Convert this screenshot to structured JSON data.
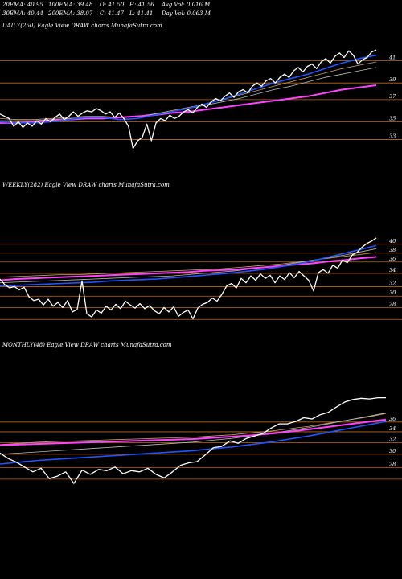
{
  "header": {
    "row1": [
      {
        "k": "20EMA",
        "v": "40.95"
      },
      {
        "k": "100EMA",
        "v": "39.48"
      },
      {
        "k": "O",
        "v": "41.50"
      },
      {
        "k": "H",
        "v": "41.56"
      },
      {
        "k": "Avg Vol",
        "v": "0.016  M"
      }
    ],
    "row2": [
      {
        "k": "30EMA",
        "v": "40.44"
      },
      {
        "k": "200EMA",
        "v": "38.07"
      },
      {
        "k": "C",
        "v": "41.47"
      },
      {
        "k": "L",
        "v": "41.41"
      },
      {
        "k": "Day Vol",
        "v": "0.063 M"
      }
    ]
  },
  "panels": {
    "daily": "DAILY(250) Eagle  View  DRAW charts MunafaSutra.com",
    "weekly": "WEEKLY(282) Eagle  View  DRAW charts MunafaSutra.com",
    "monthly": "MONTHLY(48) Eagle  View  DRAW charts MunafaSutra.com"
  },
  "colors": {
    "price": "#ffffff",
    "ema_blue": "#2255ff",
    "ema_magenta": "#ff44ff",
    "ema_tan": "#c8a070",
    "ema_gray": "#bbbbbb",
    "gridline": "#c06a1a"
  },
  "chart_data": [
    {
      "type": "line",
      "panel": "daily",
      "ylim": [
        32.5,
        42.5
      ],
      "yticks": [
        "41",
        "39",
        "37",
        "35",
        "33"
      ],
      "hlines": [
        40.5,
        38.5,
        37.0,
        35.0,
        33.4
      ],
      "series": [
        {
          "role": "price",
          "values": [
            35.7,
            35.5,
            35.3,
            34.6,
            35.0,
            34.5,
            34.9,
            34.6,
            35.1,
            34.8,
            35.3,
            35.0,
            35.4,
            35.7,
            35.2,
            35.5,
            35.9,
            35.5,
            35.8,
            36.0,
            35.9,
            36.2,
            36.0,
            35.7,
            35.9,
            35.4,
            35.8,
            35.3,
            34.6,
            32.6,
            33.3,
            33.6,
            34.8,
            33.3,
            34.9,
            35.3,
            35.1,
            35.6,
            35.3,
            35.5,
            35.9,
            36.1,
            35.8,
            36.3,
            36.6,
            36.3,
            36.8,
            37.1,
            36.9,
            37.3,
            37.6,
            37.2,
            37.7,
            37.9,
            37.6,
            38.2,
            38.5,
            38.2,
            38.7,
            38.9,
            38.5,
            39.0,
            39.3,
            39.0,
            39.6,
            39.9,
            39.5,
            40.0,
            40.2,
            39.8,
            40.4,
            40.7,
            40.3,
            40.9,
            41.2,
            40.8,
            41.4,
            41.0,
            40.2,
            40.6,
            40.8,
            41.3,
            41.47
          ]
        },
        {
          "role": "ema_blue",
          "values": [
            35.0,
            34.9,
            34.9,
            35.0,
            35.2,
            35.4,
            35.4,
            35.2,
            35.3,
            35.6,
            35.9,
            36.2,
            36.6,
            37.0,
            37.5,
            38.0,
            38.5,
            38.9,
            39.3,
            39.8,
            40.3,
            40.7,
            41.0
          ]
        },
        {
          "role": "ema_magenta",
          "values": [
            34.9,
            34.9,
            35.0,
            35.1,
            35.2,
            35.3,
            35.3,
            35.4,
            35.5,
            35.6,
            35.8,
            35.9,
            36.1,
            36.3,
            36.5,
            36.7,
            36.9,
            37.1,
            37.3,
            37.6,
            37.9,
            38.1,
            38.3
          ]
        },
        {
          "role": "ema_tan",
          "values": [
            35.3,
            35.2,
            35.2,
            35.3,
            35.4,
            35.5,
            35.5,
            35.4,
            35.5,
            35.7,
            36.0,
            36.3,
            36.6,
            37.0,
            37.4,
            37.8,
            38.2,
            38.6,
            39.0,
            39.4,
            39.8,
            40.1,
            40.4
          ]
        },
        {
          "role": "ema_gray",
          "values": [
            35.1,
            35.1,
            35.1,
            35.2,
            35.3,
            35.4,
            35.4,
            35.4,
            35.5,
            35.7,
            35.9,
            36.2,
            36.5,
            36.8,
            37.1,
            37.5,
            37.9,
            38.2,
            38.6,
            39.0,
            39.3,
            39.6,
            39.9
          ]
        }
      ]
    },
    {
      "type": "line",
      "panel": "weekly",
      "ylim": [
        27.5,
        41.5
      ],
      "yticks": [
        "40",
        "38",
        "36",
        "34",
        "32",
        "30",
        "28"
      ],
      "hlines": [
        40.0,
        38.6,
        37.2,
        35.4,
        33.3,
        31.8,
        30.0,
        28.1
      ],
      "series": [
        {
          "role": "price",
          "values": [
            34.5,
            33.6,
            33.1,
            33.3,
            32.8,
            33.2,
            31.7,
            31.1,
            31.3,
            30.4,
            31.3,
            30.2,
            30.8,
            30.0,
            31.1,
            29.3,
            29.7,
            34.2,
            29.0,
            28.5,
            29.6,
            29.1,
            30.2,
            29.6,
            30.5,
            29.8,
            31.0,
            30.4,
            29.9,
            30.6,
            29.8,
            30.3,
            29.5,
            29.0,
            30.0,
            29.3,
            30.1,
            28.6,
            29.2,
            29.6,
            28.2,
            29.9,
            30.5,
            30.8,
            31.5,
            31.0,
            32.1,
            33.4,
            33.8,
            33.1,
            34.6,
            33.9,
            35.0,
            34.3,
            35.3,
            34.6,
            35.1,
            33.9,
            35.0,
            34.4,
            35.5,
            34.7,
            35.7,
            35.0,
            34.3,
            32.6,
            35.5,
            36.0,
            35.4,
            36.7,
            36.2,
            37.5,
            37.1,
            38.3,
            38.7,
            39.5,
            40.1,
            40.5,
            41.0
          ]
        },
        {
          "role": "ema_blue",
          "values": [
            33.4,
            33.5,
            33.6,
            33.7,
            33.8,
            33.9,
            34.0,
            34.2,
            34.3,
            34.4,
            34.5,
            34.7,
            34.9,
            35.1,
            35.3,
            35.5,
            35.8,
            36.1,
            36.5,
            36.9,
            37.4,
            38.0,
            38.6,
            39.2,
            39.8
          ]
        },
        {
          "role": "ema_magenta",
          "values": [
            34.3,
            34.5,
            34.6,
            34.7,
            34.8,
            34.9,
            35.0,
            35.1,
            35.2,
            35.3,
            35.4,
            35.5,
            35.6,
            35.8,
            35.9,
            36.0,
            36.2,
            36.4,
            36.6,
            36.8,
            37.0,
            37.3,
            37.5,
            37.8,
            38.0
          ]
        },
        {
          "role": "ema_tan",
          "values": [
            34.8,
            34.9,
            35.0,
            35.1,
            35.2,
            35.2,
            35.3,
            35.4,
            35.5,
            35.6,
            35.7,
            35.8,
            35.9,
            36.0,
            36.1,
            36.3,
            36.5,
            36.7,
            36.9,
            37.2,
            37.5,
            37.8,
            38.1,
            38.4,
            38.7
          ]
        },
        {
          "role": "ema_gray",
          "values": [
            33.9,
            34.0,
            34.1,
            34.2,
            34.3,
            34.4,
            34.5,
            34.6,
            34.7,
            34.8,
            34.9,
            35.0,
            35.2,
            35.4,
            35.6,
            35.8,
            36.1,
            36.4,
            36.7,
            37.1,
            37.5,
            37.9,
            38.3,
            38.8,
            39.3
          ]
        }
      ]
    },
    {
      "type": "line",
      "panel": "monthly",
      "ylim": [
        26.5,
        42.5
      ],
      "yticks": [
        "36",
        "34",
        "32",
        "30",
        "28"
      ],
      "hlines": [
        37.5,
        35.9,
        34.1,
        32.2,
        30.0,
        28.1
      ],
      "series": [
        {
          "role": "price",
          "values": [
            32.4,
            31.5,
            30.9,
            30.1,
            29.3,
            29.9,
            28.2,
            28.6,
            29.3,
            27.4,
            29.6,
            28.9,
            29.7,
            29.5,
            30.1,
            29.0,
            29.5,
            29.3,
            29.9,
            28.9,
            28.3,
            29.3,
            30.4,
            30.8,
            31.0,
            32.1,
            33.3,
            33.5,
            34.4,
            34.0,
            34.8,
            35.2,
            35.6,
            36.5,
            37.2,
            37.2,
            37.6,
            38.2,
            38.0,
            38.7,
            39.1,
            40.0,
            40.8,
            41.2,
            41.4,
            41.3,
            41.5,
            41.5
          ]
        },
        {
          "role": "ema_blue",
          "values": [
            30.6,
            30.9,
            31.2,
            31.4,
            31.6,
            31.8,
            32.0,
            32.2,
            32.4,
            32.6,
            32.8,
            33.1,
            33.4,
            33.8,
            34.2,
            34.7,
            35.2,
            35.8,
            36.4,
            37.0,
            37.6
          ]
        },
        {
          "role": "ema_magenta",
          "values": [
            33.7,
            33.8,
            33.9,
            34.0,
            34.1,
            34.2,
            34.3,
            34.4,
            34.5,
            34.6,
            34.7,
            34.9,
            35.1,
            35.3,
            35.6,
            35.9,
            36.3,
            36.7,
            37.1,
            37.5,
            37.9
          ]
        },
        {
          "role": "ema_tan",
          "values": [
            33.8,
            34.0,
            34.2,
            34.3,
            34.4,
            34.5,
            34.6,
            34.7,
            34.8,
            34.9,
            35.0,
            35.2,
            35.4,
            35.7,
            36.0,
            36.4,
            36.8,
            37.3,
            37.8,
            38.3,
            38.9
          ]
        },
        {
          "role": "ema_gray",
          "values": [
            32.2,
            32.4,
            32.6,
            32.8,
            33.0,
            33.2,
            33.4,
            33.6,
            33.8,
            34.0,
            34.2,
            34.5,
            34.8,
            35.2,
            35.6,
            36.1,
            36.6,
            37.2,
            37.8,
            38.4,
            39.0
          ]
        }
      ]
    }
  ]
}
